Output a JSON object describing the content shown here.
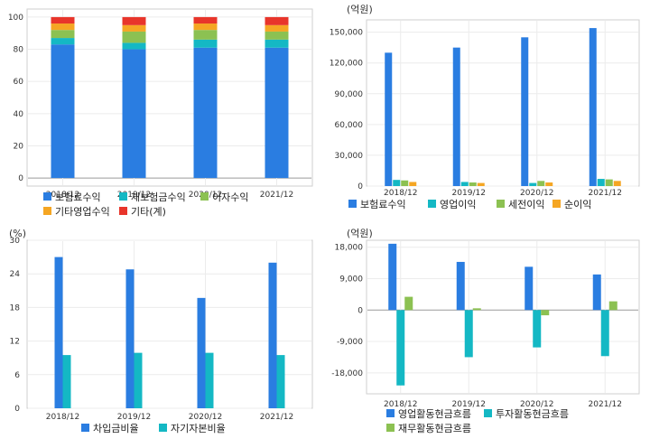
{
  "colors": {
    "blue": "#2a7de1",
    "teal": "#14b8c4",
    "green": "#8cc152",
    "orange": "#f5a623",
    "red": "#e8352b"
  },
  "chart_data": [
    {
      "id": "c1",
      "type": "stacked-bar",
      "categories": [
        "2018/12",
        "2019/12",
        "2020/12",
        "2021/12"
      ],
      "ylim": [
        -5,
        105
      ],
      "yticks": [
        0,
        20,
        40,
        60,
        80,
        100
      ],
      "unit": "",
      "series": [
        {
          "name": "보험료수익",
          "color": "blue",
          "values": [
            83,
            80,
            81,
            81
          ]
        },
        {
          "name": "재보험금수익",
          "color": "teal",
          "values": [
            4,
            4,
            5,
            5
          ]
        },
        {
          "name": "이자수익",
          "color": "green",
          "values": [
            5,
            7,
            6,
            5
          ]
        },
        {
          "name": "기타영업수익",
          "color": "orange",
          "values": [
            4,
            4,
            4,
            4
          ]
        },
        {
          "name": "기타(계)",
          "color": "red",
          "values": [
            4,
            5,
            4,
            5
          ]
        }
      ]
    },
    {
      "id": "c2",
      "type": "bar",
      "categories": [
        "2018/12",
        "2019/12",
        "2020/12",
        "2021/12"
      ],
      "ylim": [
        0,
        162000
      ],
      "yticks": [
        0,
        30000,
        60000,
        90000,
        120000,
        150000
      ],
      "ytick_labels": [
        "0",
        "30,000",
        "60,000",
        "90,000",
        "120,000",
        "150,000"
      ],
      "unit": "(억원)",
      "series": [
        {
          "name": "보험료수익",
          "color": "blue",
          "values": [
            130000,
            135000,
            145000,
            154000
          ]
        },
        {
          "name": "영업이익",
          "color": "teal",
          "values": [
            6000,
            4000,
            3000,
            7000
          ]
        },
        {
          "name": "세전이익",
          "color": "green",
          "values": [
            5500,
            3500,
            5000,
            6500
          ]
        },
        {
          "name": "순이익",
          "color": "orange",
          "values": [
            4000,
            3000,
            3500,
            5000
          ]
        }
      ]
    },
    {
      "id": "c3",
      "type": "bar",
      "categories": [
        "2018/12",
        "2019/12",
        "2020/12",
        "2021/12"
      ],
      "ylim": [
        0,
        30
      ],
      "yticks": [
        0,
        6,
        12,
        18,
        24,
        30
      ],
      "unit": "(%)",
      "series": [
        {
          "name": "차입금비율",
          "color": "blue",
          "values": [
            27.0,
            24.8,
            19.7,
            26.0
          ]
        },
        {
          "name": "자기자본비율",
          "color": "teal",
          "values": [
            9.5,
            9.9,
            9.9,
            9.5
          ]
        }
      ]
    },
    {
      "id": "c4",
      "type": "bar",
      "categories": [
        "2018/12",
        "2019/12",
        "2020/12",
        "2021/12"
      ],
      "ylim": [
        -24000,
        20000
      ],
      "yticks": [
        -18000,
        -9000,
        0,
        9000,
        18000
      ],
      "ytick_labels": [
        "-18,000",
        "-9,000",
        "0",
        "9,000",
        "18,000"
      ],
      "unit": "(억원)",
      "series": [
        {
          "name": "영업활동현금흐름",
          "color": "blue",
          "values": [
            19000,
            13800,
            12400,
            10200
          ]
        },
        {
          "name": "투자활동현금흐름",
          "color": "teal",
          "values": [
            -21600,
            -13500,
            -10700,
            -13200
          ]
        },
        {
          "name": "재무활동현금흐름",
          "color": "green",
          "values": [
            3800,
            500,
            -1500,
            2500
          ]
        }
      ]
    }
  ]
}
